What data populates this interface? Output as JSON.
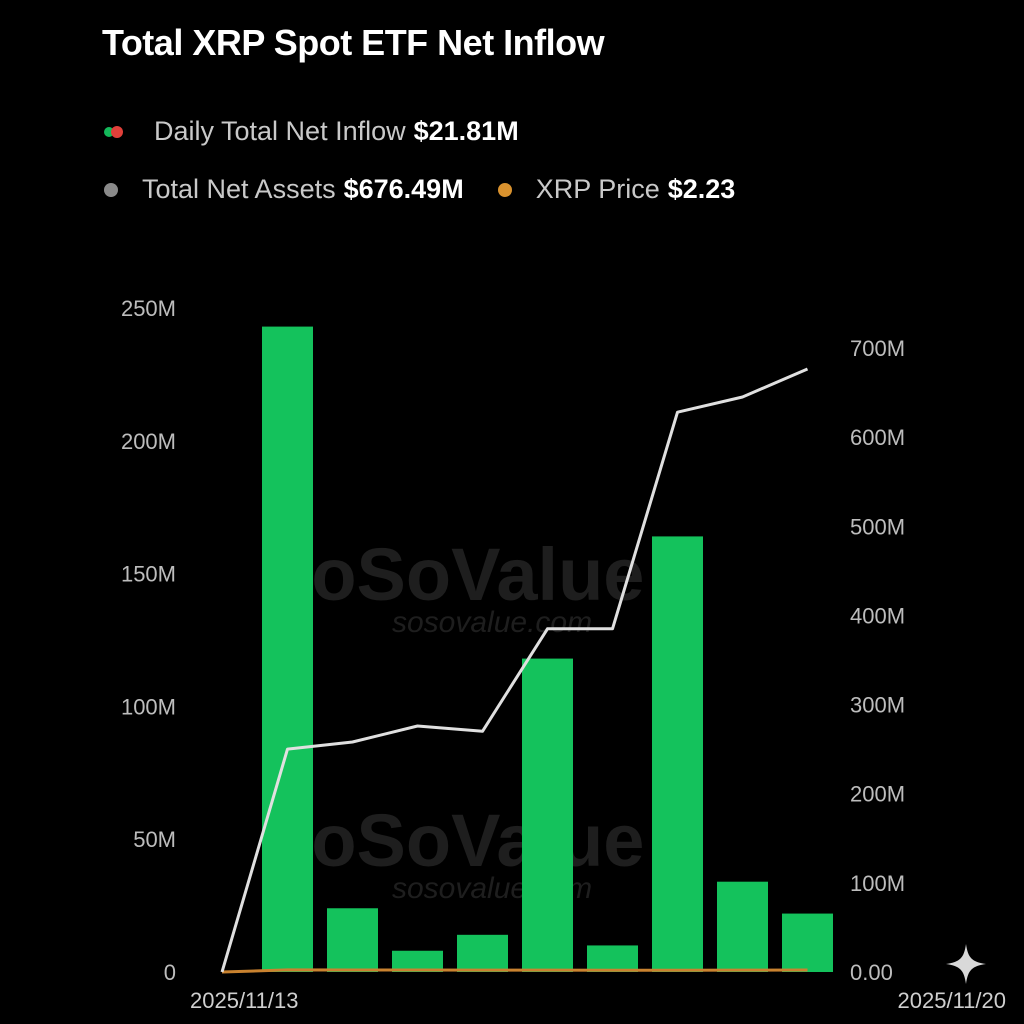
{
  "legend": {
    "daily_label": "Daily Total Net Inflow",
    "daily_value": "$21.81M",
    "assets_label": "Total Net Assets",
    "assets_value": "$676.49M",
    "price_label": "XRP Price",
    "price_value": "$2.23"
  },
  "watermark": {
    "brand": "SoSoValue",
    "domain": "sosovalue.com"
  },
  "colors": {
    "bar": "#14c25c",
    "assets_line": "#e0e0e0",
    "price_line": "#c9822f",
    "legend_green": "#14b85a",
    "legend_red": "#e0403a",
    "legend_gray": "#8a8a8a",
    "legend_orange": "#d9922e"
  },
  "chart_data": {
    "type": "bar",
    "title": "Total XRP Spot ETF Net Inflow",
    "categories": [
      "",
      "",
      "",
      "",
      "",
      "",
      "",
      "",
      ""
    ],
    "x_tick_labels": [
      "2025/11/13",
      "2025/11/20"
    ],
    "series": [
      {
        "name": "Daily Total Net Inflow",
        "type": "bar",
        "axis": "left",
        "values": [
          243,
          24,
          8,
          14,
          118,
          10,
          164,
          34,
          22
        ]
      },
      {
        "name": "Total Net Assets",
        "type": "line",
        "axis": "right",
        "start_value": 0,
        "values": [
          250,
          258,
          276,
          270,
          385,
          385,
          628,
          645,
          676.49
        ]
      },
      {
        "name": "XRP Price",
        "type": "line",
        "axis": "right",
        "start_value": 0,
        "values": [
          2.3,
          2.2,
          2.25,
          2.15,
          2.1,
          2.05,
          2.0,
          2.1,
          2.23
        ]
      }
    ],
    "y_left_ticks": [
      "250M",
      "200M",
      "150M",
      "100M",
      "50M",
      "0"
    ],
    "y_left_range": [
      0,
      250
    ],
    "y_right_ticks": [
      "700M",
      "600M",
      "500M",
      "400M",
      "300M",
      "200M",
      "100M",
      "0.00"
    ],
    "y_right_range": [
      0,
      700
    ],
    "grid": false,
    "legend_position": "top"
  }
}
